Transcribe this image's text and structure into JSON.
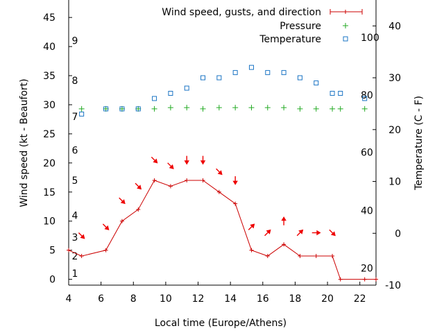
{
  "chart_data": {
    "type": "line",
    "xlabel": "Local time (Europe/Athens)",
    "ylabel_left": "Wind speed (kt - Beaufort)",
    "ylabel_right": "Temperature (C - F)",
    "xlim": [
      4,
      23
    ],
    "ylim_left": [
      -1,
      48
    ],
    "ylim_right": [
      -10,
      45
    ],
    "x_ticks": [
      4,
      6,
      8,
      10,
      12,
      14,
      16,
      18,
      20,
      22
    ],
    "y_ticks_left": [
      0,
      5,
      10,
      15,
      20,
      25,
      30,
      35,
      40,
      45
    ],
    "y_ticks_right": [
      -10,
      0,
      10,
      20,
      30,
      40
    ],
    "beaufort_labels": [
      {
        "label": "1",
        "y": 1
      },
      {
        "label": "2",
        "y": 4
      },
      {
        "label": "3",
        "y": 7.2
      },
      {
        "label": "4",
        "y": 11
      },
      {
        "label": "5",
        "y": 17
      },
      {
        "label": "6",
        "y": 22.2
      },
      {
        "label": "7",
        "y": 28
      },
      {
        "label": "8",
        "y": 34.2
      },
      {
        "label": "9",
        "y": 41
      }
    ],
    "fahrenheit_labels": [
      {
        "label": "20",
        "y_c": -6.7
      },
      {
        "label": "40",
        "y_c": 4.4
      },
      {
        "label": "60",
        "y_c": 15.6
      },
      {
        "label": "80",
        "y_c": 26.7
      },
      {
        "label": "100",
        "y_c": 37.8
      }
    ],
    "legend": {
      "position": "top-right",
      "entries": [
        "Wind speed, gusts, and direction",
        "Pressure",
        "Temperature"
      ]
    },
    "colors": {
      "wind": "#cc0000",
      "pressure": "#22aa22",
      "temperature": "#1a74c4",
      "arrow": "#ee0000"
    },
    "series": [
      {
        "name": "Wind speed, gusts, and direction",
        "x": [
          4.0,
          4.8,
          6.3,
          7.3,
          8.3,
          9.3,
          10.3,
          11.3,
          12.3,
          13.3,
          14.3,
          15.3,
          16.3,
          17.3,
          18.3,
          19.3,
          20.3,
          20.8,
          22.3,
          23.0
        ],
        "y": [
          5,
          4,
          5,
          10,
          12,
          17,
          16,
          17,
          17,
          15,
          13,
          5,
          4,
          6,
          4,
          4,
          4,
          0,
          0,
          0
        ]
      },
      {
        "name": "Pressure",
        "x": [
          4.8,
          6.3,
          7.3,
          8.3,
          9.3,
          10.3,
          11.3,
          12.3,
          13.3,
          14.3,
          15.3,
          16.3,
          17.3,
          18.3,
          19.3,
          20.3,
          20.8,
          22.3
        ],
        "y": [
          29.3,
          29.3,
          29.3,
          29.3,
          29.3,
          29.5,
          29.5,
          29.3,
          29.5,
          29.5,
          29.5,
          29.5,
          29.5,
          29.3,
          29.3,
          29.3,
          29.3,
          29.3
        ]
      },
      {
        "name": "Temperature",
        "x": [
          4.8,
          6.3,
          7.3,
          8.3,
          9.3,
          10.3,
          11.3,
          12.3,
          13.3,
          14.3,
          15.3,
          16.3,
          17.3,
          18.3,
          19.3,
          20.3,
          20.8,
          22.3
        ],
        "y": [
          23,
          24,
          24,
          24,
          26,
          27,
          28,
          30,
          30,
          31,
          32,
          31,
          31,
          30,
          29,
          27,
          27,
          26
        ]
      }
    ],
    "wind_direction_arrows": [
      {
        "x": 4.8,
        "y": 7.5,
        "dir": "down-right"
      },
      {
        "x": 6.3,
        "y": 9.0,
        "dir": "down-right"
      },
      {
        "x": 7.3,
        "y": 13.5,
        "dir": "down-right"
      },
      {
        "x": 8.3,
        "y": 16.0,
        "dir": "down-right"
      },
      {
        "x": 9.3,
        "y": 20.5,
        "dir": "down-right"
      },
      {
        "x": 10.3,
        "y": 19.5,
        "dir": "down-right"
      },
      {
        "x": 11.3,
        "y": 20.5,
        "dir": "down"
      },
      {
        "x": 12.3,
        "y": 20.5,
        "dir": "down"
      },
      {
        "x": 13.3,
        "y": 18.5,
        "dir": "down-right"
      },
      {
        "x": 14.3,
        "y": 17.0,
        "dir": "down"
      },
      {
        "x": 15.3,
        "y": 9.0,
        "dir": "up-right"
      },
      {
        "x": 16.3,
        "y": 8.0,
        "dir": "up-right"
      },
      {
        "x": 17.3,
        "y": 10.0,
        "dir": "up"
      },
      {
        "x": 18.3,
        "y": 8.0,
        "dir": "up-right"
      },
      {
        "x": 19.3,
        "y": 8.0,
        "dir": "right"
      },
      {
        "x": 20.3,
        "y": 8.0,
        "dir": "down-right"
      }
    ]
  }
}
